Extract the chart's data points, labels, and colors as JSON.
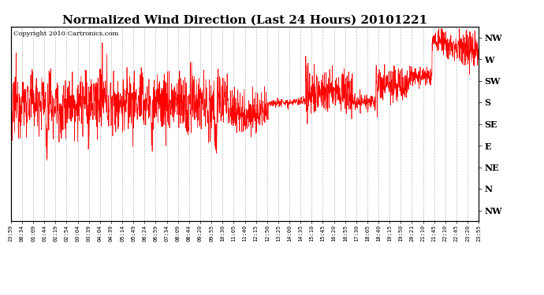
{
  "title": "Normalized Wind Direction (Last 24 Hours) 20101221",
  "copyright": "Copyright 2010 Cartronics.com",
  "line_color": "#ff0000",
  "background_color": "#ffffff",
  "plot_bg_color": "#ffffff",
  "grid_color": "#aaaaaa",
  "ytick_labels": [
    "NW",
    "W",
    "SW",
    "S",
    "SE",
    "E",
    "NE",
    "N",
    "NW"
  ],
  "ytick_values": [
    8,
    7,
    6,
    5,
    4,
    3,
    2,
    1,
    0
  ],
  "ylim": [
    -0.5,
    8.5
  ],
  "time_labels": [
    "23:59",
    "00:34",
    "01:09",
    "01:44",
    "02:19",
    "02:54",
    "03:04",
    "03:39",
    "04:04",
    "04:39",
    "05:14",
    "05:49",
    "06:24",
    "06:59",
    "07:34",
    "08:09",
    "08:44",
    "09:20",
    "09:55",
    "10:30",
    "11:05",
    "11:40",
    "12:15",
    "12:50",
    "13:25",
    "14:00",
    "14:35",
    "15:10",
    "15:45",
    "16:20",
    "16:55",
    "17:30",
    "18:05",
    "18:40",
    "19:15",
    "19:50",
    "20:21",
    "21:10",
    "21:45",
    "22:10",
    "22:45",
    "23:20",
    "23:55"
  ],
  "title_fontsize": 11,
  "copyright_fontsize": 6,
  "ytick_fontsize": 8,
  "xtick_fontsize": 5
}
